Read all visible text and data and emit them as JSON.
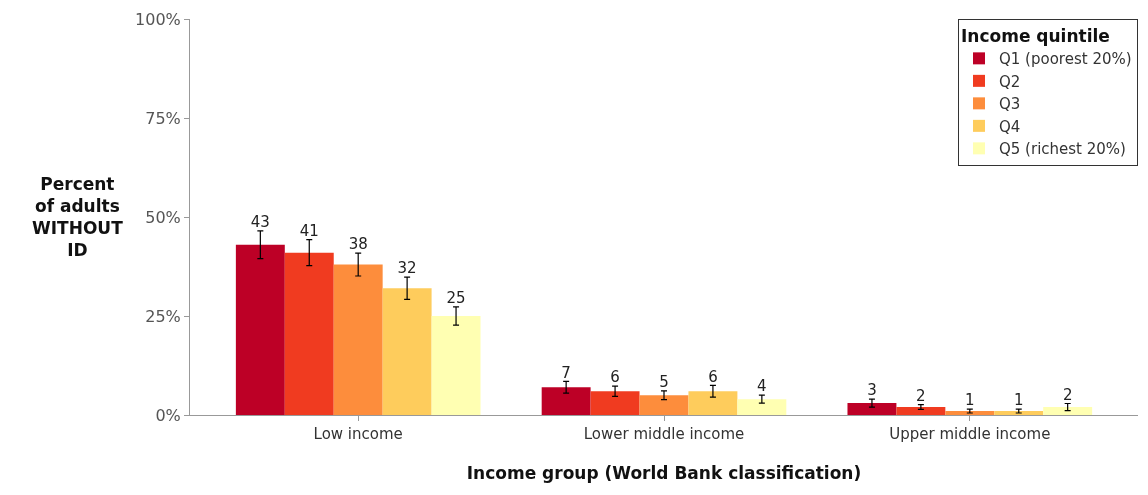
{
  "chart_data": {
    "type": "bar",
    "categories": [
      "Low income",
      "Lower middle income",
      "Upper middle income"
    ],
    "series": [
      {
        "name": "Q1 (poorest 20%)",
        "color": "#bd0026",
        "values": [
          43,
          7,
          3
        ],
        "errors": [
          3.5,
          1.5,
          1.0
        ]
      },
      {
        "name": "Q2",
        "color": "#f03b20",
        "values": [
          41,
          6,
          2
        ],
        "errors": [
          3.3,
          1.3,
          0.6
        ]
      },
      {
        "name": "Q3",
        "color": "#fd8d3c",
        "values": [
          38,
          5,
          1
        ],
        "errors": [
          2.9,
          1.1,
          0.5
        ]
      },
      {
        "name": "Q4",
        "color": "#fecc5c",
        "values": [
          32,
          6,
          1
        ],
        "errors": [
          2.8,
          1.5,
          0.5
        ]
      },
      {
        "name": "Q5 (richest 20%)",
        "color": "#ffffb2",
        "values": [
          25,
          4,
          2
        ],
        "errors": [
          2.3,
          1.0,
          0.9
        ]
      }
    ],
    "xlabel": "Income group (World Bank classification)",
    "ylabel": "Percent\nof adults\nWITHOUT\nID",
    "legend_title": "Income quintile",
    "ylim": [
      0,
      100
    ],
    "yticks": [
      {
        "value": 0,
        "label": "0%"
      },
      {
        "value": 25,
        "label": "25%"
      },
      {
        "value": 50,
        "label": "50%"
      },
      {
        "value": 75,
        "label": "75%"
      },
      {
        "value": 100,
        "label": "100%"
      }
    ],
    "data_labels": true,
    "legend": "top right"
  }
}
